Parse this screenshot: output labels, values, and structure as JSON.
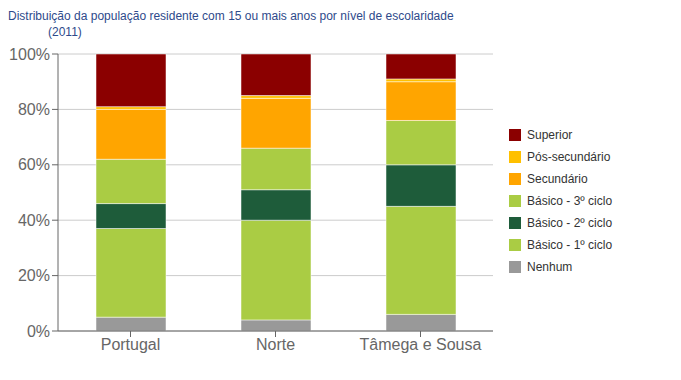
{
  "chart_data": {
    "type": "bar",
    "title": "Distribuição da população residente com 15 ou mais anos por nível de escolaridade",
    "subtitle": "(2011)",
    "title_color": "#2E4A8B",
    "categories": [
      "Portugal",
      "Norte",
      "Tâmega e Sousa"
    ],
    "series": [
      {
        "name": "Nenhum",
        "color": "#999999",
        "values": [
          5,
          4,
          6
        ]
      },
      {
        "name": "Básico - 1º ciclo",
        "color": "#AACC44",
        "values": [
          32,
          36,
          39
        ]
      },
      {
        "name": "Básico - 2º ciclo",
        "color": "#1E5C3A",
        "values": [
          9,
          11,
          15
        ]
      },
      {
        "name": "Básico - 3º ciclo",
        "color": "#AACC44",
        "values": [
          16,
          15,
          16
        ]
      },
      {
        "name": "Secundário",
        "color": "#FFA500",
        "values": [
          18,
          18,
          14
        ]
      },
      {
        "name": "Pós-secundário",
        "color": "#FFC000",
        "values": [
          1,
          1,
          1
        ]
      },
      {
        "name": "Superior",
        "color": "#8B0000",
        "values": [
          19,
          15,
          9
        ]
      }
    ],
    "stacked": true,
    "ylim": [
      0,
      100
    ],
    "yticks": [
      {
        "value": 0,
        "label": "0%"
      },
      {
        "value": 20,
        "label": "20%"
      },
      {
        "value": 40,
        "label": "40%"
      },
      {
        "value": 60,
        "label": "60%"
      },
      {
        "value": 80,
        "label": "80%"
      },
      {
        "value": 100,
        "label": "100%"
      }
    ],
    "grid": true,
    "legend": "right"
  }
}
